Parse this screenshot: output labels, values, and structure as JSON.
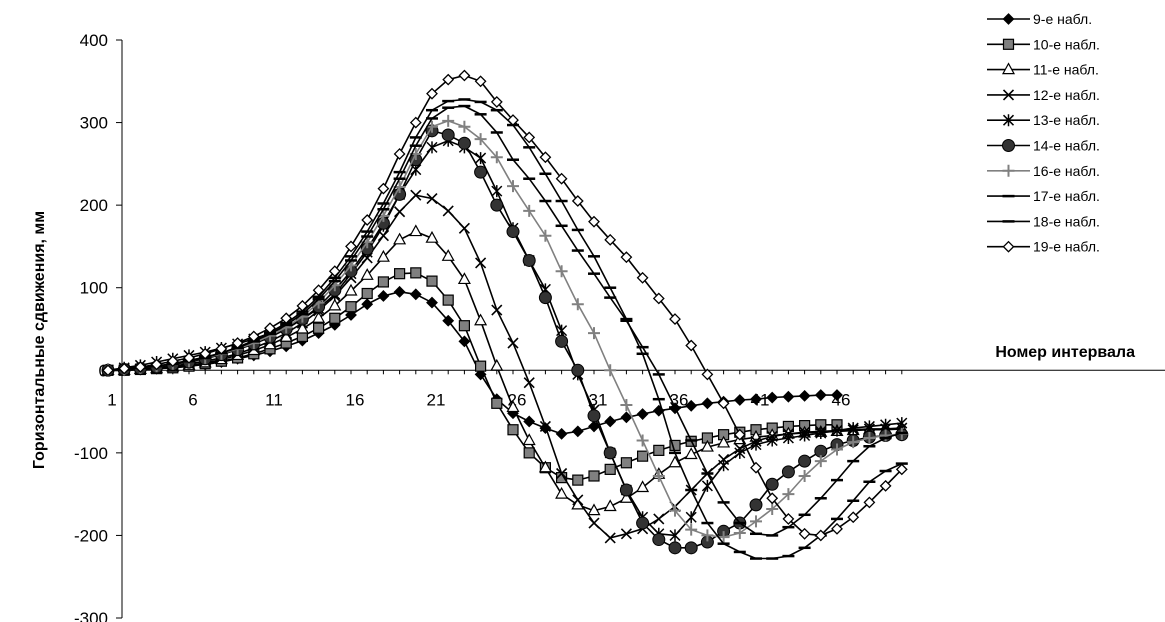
{
  "chart_data": {
    "type": "line",
    "xlabel": "Номер интервала",
    "ylabel": "Горизонтальные сдвижения, мм",
    "xlim": [
      1,
      50
    ],
    "ylim": [
      -300,
      400
    ],
    "yticks": [
      -300,
      -200,
      -100,
      0,
      100,
      200,
      300,
      400
    ],
    "ytick_labels": [
      "-300",
      "-200",
      "-100",
      "0",
      "100",
      "200",
      "300",
      "400"
    ],
    "xticks": [
      1,
      6,
      11,
      16,
      21,
      26,
      31,
      36,
      41,
      46
    ],
    "xtick_labels": [
      "1",
      "6",
      "11",
      "16",
      "21",
      "26",
      "31",
      "36",
      "41",
      "46"
    ],
    "legend_position": "top-right",
    "series": [
      {
        "name": "9-е набл.",
        "marker": "diamond-filled",
        "color": "#000000",
        "x": [
          1,
          2,
          3,
          4,
          5,
          6,
          7,
          8,
          9,
          10,
          11,
          12,
          13,
          14,
          15,
          16,
          17,
          18,
          19,
          20,
          21,
          22,
          23,
          24,
          25,
          26,
          27,
          28,
          29,
          30,
          31,
          32,
          33,
          34,
          35,
          36,
          37,
          38,
          39,
          40,
          41,
          42,
          43,
          44,
          45,
          46
        ],
        "y": [
          0,
          0,
          1,
          2,
          3,
          5,
          7,
          10,
          14,
          18,
          23,
          29,
          36,
          45,
          55,
          67,
          80,
          90,
          95,
          92,
          82,
          60,
          35,
          -5,
          -35,
          -52,
          -62,
          -70,
          -77,
          -74,
          -68,
          -62,
          -57,
          -53,
          -49,
          -46,
          -43,
          -40,
          -38,
          -36,
          -35,
          -33,
          -32,
          -31,
          -30,
          -30
        ]
      },
      {
        "name": "10-е набл.",
        "marker": "square-filled",
        "color": "#000000",
        "x": [
          1,
          2,
          3,
          4,
          5,
          6,
          7,
          8,
          9,
          10,
          11,
          12,
          13,
          14,
          15,
          16,
          17,
          18,
          19,
          20,
          21,
          22,
          23,
          24,
          25,
          26,
          27,
          28,
          29,
          30,
          31,
          32,
          33,
          34,
          35,
          36,
          37,
          38,
          39,
          40,
          41,
          42,
          43,
          44,
          45,
          46
        ],
        "y": [
          0,
          0,
          1,
          2,
          3,
          5,
          8,
          11,
          15,
          20,
          26,
          33,
          41,
          51,
          63,
          77,
          93,
          107,
          117,
          118,
          108,
          85,
          54,
          5,
          -40,
          -72,
          -100,
          -118,
          -130,
          -133,
          -128,
          -120,
          -112,
          -104,
          -97,
          -91,
          -86,
          -82,
          -78,
          -75,
          -72,
          -70,
          -68,
          -67,
          -66,
          -66
        ]
      },
      {
        "name": "11-е набл.",
        "marker": "triangle-open",
        "color": "#000000",
        "x": [
          1,
          2,
          3,
          4,
          5,
          6,
          7,
          8,
          9,
          10,
          11,
          12,
          13,
          14,
          15,
          16,
          17,
          18,
          19,
          20,
          21,
          22,
          23,
          24,
          25,
          26,
          27,
          28,
          29,
          30,
          31,
          32,
          33,
          34,
          35,
          36,
          37,
          38,
          39,
          40,
          41,
          42,
          43,
          44,
          45,
          46,
          47,
          48,
          49,
          50
        ],
        "y": [
          0,
          0,
          1,
          2,
          4,
          6,
          9,
          13,
          18,
          24,
          31,
          40,
          50,
          63,
          78,
          96,
          115,
          137,
          158,
          168,
          160,
          138,
          110,
          60,
          5,
          -45,
          -85,
          -118,
          -150,
          -163,
          -170,
          -165,
          -155,
          -142,
          -126,
          -112,
          -102,
          -93,
          -88,
          -84,
          -81,
          -79,
          -77,
          -76,
          -75,
          -74,
          -73,
          -72,
          -72,
          -71
        ]
      },
      {
        "name": "12-е набл.",
        "marker": "x",
        "color": "#000000",
        "x": [
          1,
          2,
          3,
          4,
          5,
          6,
          7,
          8,
          9,
          10,
          11,
          12,
          13,
          14,
          15,
          16,
          17,
          18,
          19,
          20,
          21,
          22,
          23,
          24,
          25,
          26,
          27,
          28,
          29,
          30,
          31,
          32,
          33,
          34,
          35,
          36,
          37,
          38,
          39,
          40,
          41,
          42,
          43,
          44,
          45,
          46,
          47,
          48,
          49,
          50
        ],
        "y": [
          0,
          1,
          2,
          3,
          5,
          8,
          11,
          15,
          20,
          27,
          35,
          45,
          57,
          72,
          90,
          112,
          136,
          163,
          192,
          212,
          208,
          193,
          172,
          130,
          73,
          33,
          -15,
          -68,
          -125,
          -157,
          -185,
          -203,
          -198,
          -192,
          -180,
          -165,
          -145,
          -125,
          -108,
          -95,
          -86,
          -80,
          -77,
          -75,
          -74,
          -73,
          -72,
          -71,
          -71,
          -70
        ]
      },
      {
        "name": "13-е набл.",
        "marker": "asterisk",
        "color": "#000000",
        "x": [
          1,
          2,
          3,
          4,
          5,
          6,
          7,
          8,
          9,
          10,
          11,
          12,
          13,
          14,
          15,
          16,
          17,
          18,
          19,
          20,
          21,
          22,
          23,
          24,
          25,
          26,
          27,
          28,
          29,
          30,
          31,
          32,
          33,
          34,
          35,
          36,
          37,
          38,
          39,
          40,
          41,
          42,
          43,
          44,
          45,
          46,
          47,
          48,
          49,
          50
        ],
        "y": [
          0,
          3,
          6,
          10,
          14,
          18,
          22,
          27,
          32,
          38,
          45,
          53,
          62,
          75,
          92,
          117,
          143,
          175,
          213,
          243,
          270,
          278,
          270,
          257,
          217,
          172,
          133,
          98,
          48,
          -5,
          -48,
          -100,
          -145,
          -178,
          -198,
          -200,
          -178,
          -140,
          -115,
          -100,
          -90,
          -85,
          -82,
          -79,
          -76,
          -73,
          -70,
          -68,
          -66,
          -64
        ]
      },
      {
        "name": "14-е набл.",
        "marker": "circle-filled",
        "color": "#000000",
        "x": [
          1,
          2,
          3,
          4,
          5,
          6,
          7,
          8,
          9,
          10,
          11,
          12,
          13,
          14,
          15,
          16,
          17,
          18,
          19,
          20,
          21,
          22,
          23,
          24,
          25,
          26,
          27,
          28,
          29,
          30,
          31,
          32,
          33,
          34,
          35,
          36,
          37,
          38,
          39,
          40,
          41,
          42,
          43,
          44,
          45,
          46,
          47,
          48,
          49,
          50
        ],
        "y": [
          0,
          1,
          2,
          4,
          7,
          10,
          14,
          19,
          25,
          32,
          40,
          50,
          62,
          77,
          97,
          120,
          147,
          178,
          213,
          255,
          290,
          285,
          275,
          240,
          200,
          168,
          133,
          88,
          35,
          0,
          -55,
          -100,
          -145,
          -185,
          -205,
          -215,
          -215,
          -208,
          -195,
          -185,
          -163,
          -138,
          -123,
          -110,
          -98,
          -90,
          -85,
          -81,
          -79,
          -78
        ]
      },
      {
        "name": "16-е набл.",
        "marker": "plus",
        "color": "#808080",
        "x": [
          1,
          2,
          3,
          4,
          5,
          6,
          7,
          8,
          9,
          10,
          11,
          12,
          13,
          14,
          15,
          16,
          17,
          18,
          19,
          20,
          21,
          22,
          23,
          24,
          25,
          26,
          27,
          28,
          29,
          30,
          31,
          32,
          33,
          34,
          35,
          36,
          37,
          38,
          39,
          40,
          41,
          42,
          43,
          44,
          45,
          46,
          47,
          48,
          49,
          50
        ],
        "y": [
          0,
          1,
          3,
          5,
          8,
          11,
          15,
          20,
          26,
          33,
          42,
          52,
          65,
          82,
          103,
          127,
          155,
          187,
          222,
          262,
          295,
          302,
          295,
          280,
          258,
          223,
          193,
          163,
          120,
          80,
          45,
          0,
          -42,
          -85,
          -128,
          -170,
          -193,
          -200,
          -202,
          -197,
          -183,
          -168,
          -150,
          -128,
          -110,
          -96,
          -87,
          -82,
          -79,
          -77
        ]
      },
      {
        "name": "17-е набл.",
        "marker": "dash",
        "color": "#000000",
        "x": [
          1,
          2,
          3,
          4,
          5,
          6,
          7,
          8,
          9,
          10,
          11,
          12,
          13,
          14,
          15,
          16,
          17,
          18,
          19,
          20,
          21,
          22,
          23,
          24,
          25,
          26,
          27,
          28,
          29,
          30,
          31,
          32,
          33,
          34,
          35,
          36,
          37,
          38,
          39,
          40,
          41,
          42,
          43,
          44,
          45,
          46,
          47,
          48,
          49,
          50
        ],
        "y": [
          0,
          1,
          3,
          5,
          8,
          11,
          15,
          21,
          27,
          35,
          44,
          55,
          68,
          86,
          108,
          133,
          162,
          195,
          232,
          272,
          305,
          318,
          320,
          310,
          288,
          255,
          232,
          205,
          175,
          145,
          117,
          88,
          60,
          28,
          -5,
          -45,
          -85,
          -125,
          -160,
          -185,
          -198,
          -200,
          -190,
          -175,
          -155,
          -133,
          -110,
          -92,
          -82,
          -76
        ]
      },
      {
        "name": "18-е набл.",
        "marker": "dash",
        "color": "#000000",
        "x": [
          1,
          2,
          3,
          4,
          5,
          6,
          7,
          8,
          9,
          10,
          11,
          12,
          13,
          14,
          15,
          16,
          17,
          18,
          19,
          20,
          21,
          22,
          23,
          24,
          25,
          26,
          27,
          28,
          29,
          30,
          31,
          32,
          33,
          34,
          35,
          36,
          37,
          38,
          39,
          40,
          41,
          42,
          43,
          44,
          45,
          46,
          47,
          48,
          49,
          50
        ],
        "y": [
          0,
          1,
          3,
          5,
          8,
          12,
          16,
          21,
          28,
          36,
          46,
          57,
          71,
          89,
          112,
          138,
          168,
          202,
          240,
          282,
          315,
          326,
          328,
          325,
          315,
          297,
          270,
          238,
          205,
          170,
          138,
          100,
          62,
          20,
          -35,
          -100,
          -145,
          -185,
          -210,
          -220,
          -228,
          -228,
          -225,
          -215,
          -200,
          -180,
          -158,
          -135,
          -122,
          -113
        ]
      },
      {
        "name": "19-е набл.",
        "marker": "diamond-open",
        "color": "#000000",
        "x": [
          1,
          2,
          3,
          4,
          5,
          6,
          7,
          8,
          9,
          10,
          11,
          12,
          13,
          14,
          15,
          16,
          17,
          18,
          19,
          20,
          21,
          22,
          23,
          24,
          25,
          26,
          27,
          28,
          29,
          30,
          31,
          32,
          33,
          34,
          35,
          36,
          37,
          38,
          39,
          40,
          41,
          42,
          43,
          44,
          45,
          46,
          47,
          48,
          49,
          50
        ],
        "y": [
          0,
          2,
          4,
          7,
          11,
          15,
          20,
          26,
          33,
          41,
          51,
          63,
          78,
          97,
          120,
          150,
          182,
          220,
          262,
          300,
          335,
          352,
          357,
          350,
          325,
          303,
          282,
          258,
          232,
          205,
          180,
          158,
          137,
          112,
          87,
          62,
          30,
          -5,
          -40,
          -78,
          -118,
          -155,
          -180,
          -198,
          -200,
          -192,
          -178,
          -160,
          -140,
          -120
        ]
      }
    ]
  }
}
